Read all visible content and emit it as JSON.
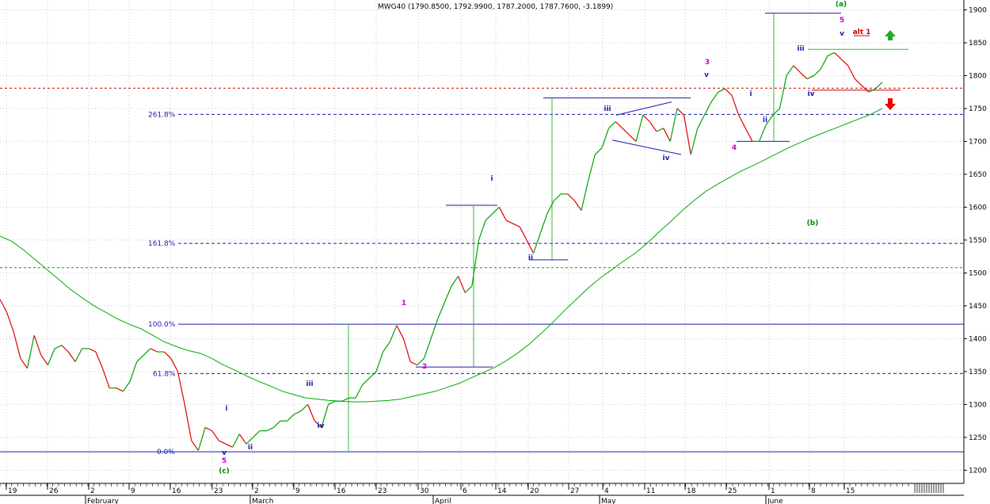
{
  "chart_data": {
    "type": "line",
    "title": "MWG40 (1790.8500, 1792.9900, 1787.2000, 1787.7600, -3.1899)",
    "quote": {
      "open": 1790.85,
      "high": 1792.99,
      "low": 1787.2,
      "close": 1787.76,
      "change": -3.1899
    },
    "ylim": [
      1180,
      1915
    ],
    "y_ticks": [
      1200,
      1250,
      1300,
      1350,
      1400,
      1450,
      1500,
      1550,
      1600,
      1650,
      1700,
      1750,
      1800,
      1850,
      1900
    ],
    "grid": true,
    "x_ticks": [
      "19",
      "26",
      "2",
      "9",
      "16",
      "23",
      "2",
      "9",
      "16",
      "23",
      "30",
      "6",
      "14",
      "20",
      "27",
      "4",
      "11",
      "18",
      "25",
      "1",
      "8",
      "15"
    ],
    "month_labels": [
      "February",
      "March",
      "April",
      "May",
      "June"
    ],
    "series": [
      {
        "color": "#00a000",
        "down_color": "#e00000",
        "values": [
          1460,
          1440,
          1410,
          1370,
          1355,
          1405,
          1375,
          1360,
          1385,
          1390,
          1380,
          1365,
          1385,
          1385,
          1380,
          1355,
          1325,
          1325,
          1320,
          1335,
          1365,
          1375,
          1385,
          1380,
          1380,
          1370,
          1350,
          1300,
          1245,
          1230,
          1265,
          1260,
          1245,
          1240,
          1235,
          1255,
          1240,
          1250,
          1260,
          1260,
          1265,
          1275,
          1275,
          1285,
          1290,
          1300,
          1275,
          1265,
          1300,
          1305,
          1305,
          1310,
          1310,
          1330,
          1340,
          1350,
          1380,
          1395,
          1420,
          1400,
          1365,
          1360,
          1370,
          1400,
          1430,
          1455,
          1480,
          1495,
          1470,
          1480,
          1550,
          1580,
          1590,
          1600,
          1580,
          1575,
          1570,
          1550,
          1530,
          1560,
          1590,
          1610,
          1620,
          1620,
          1610,
          1595,
          1640,
          1680,
          1690,
          1720,
          1730,
          1720,
          1710,
          1700,
          1740,
          1730,
          1715,
          1720,
          1700,
          1750,
          1740,
          1680,
          1720,
          1740,
          1760,
          1775,
          1780,
          1770,
          1740,
          1720,
          1700,
          1700,
          1725,
          1740,
          1750,
          1800,
          1815,
          1805,
          1795,
          1800,
          1810,
          1830,
          1835,
          1825,
          1815,
          1795,
          1785,
          1775,
          1780,
          1790
        ]
      },
      {
        "color": "#00aa00",
        "values": [
          1556,
          1548,
          1535,
          1520,
          1505,
          1490,
          1475,
          1462,
          1450,
          1440,
          1430,
          1422,
          1415,
          1405,
          1395,
          1388,
          1382,
          1378,
          1370,
          1360,
          1352,
          1343,
          1335,
          1328,
          1320,
          1315,
          1310,
          1308,
          1306,
          1305,
          1304,
          1304,
          1305,
          1306,
          1308,
          1312,
          1316,
          1320,
          1326,
          1332,
          1340,
          1348,
          1356,
          1366,
          1378,
          1392,
          1408,
          1425,
          1443,
          1460,
          1477,
          1492,
          1505,
          1518,
          1530,
          1545,
          1562,
          1578,
          1595,
          1610,
          1624,
          1635,
          1645,
          1655,
          1663,
          1672,
          1681,
          1690,
          1698,
          1706,
          1713,
          1720,
          1727,
          1734,
          1741,
          1750
        ]
      }
    ],
    "fib_levels": [
      {
        "label": "261.8%",
        "value": 1741,
        "color": "#1a1aaa"
      },
      {
        "label": "161.8%",
        "value": 1545,
        "color": "#1a1aaa"
      },
      {
        "label": "100.0%",
        "value": 1422,
        "color": "#1a1aaa"
      },
      {
        "label": "61.8%",
        "value": 1347,
        "color": "#1a1aaa"
      },
      {
        "label": "0.0%",
        "value": 1228,
        "color": "#1a1aaa"
      }
    ],
    "ref_lines": [
      {
        "value": 1781,
        "color": "#cc0000"
      },
      {
        "value": 1508,
        "color": "#00a000"
      }
    ],
    "wave_labels": [
      {
        "text": "i",
        "color": "#1a1aaa"
      },
      {
        "text": "v",
        "color": "#1a1aaa"
      },
      {
        "text": "5",
        "color": "#cc00cc"
      },
      {
        "text": "(c)",
        "color": "#008800"
      },
      {
        "text": "ii",
        "color": "#1a1aaa"
      },
      {
        "text": "iii",
        "color": "#1a1aaa"
      },
      {
        "text": "iv",
        "color": "#1a1aaa"
      },
      {
        "text": "1",
        "color": "#cc00cc"
      },
      {
        "text": "2",
        "color": "#cc00cc"
      },
      {
        "text": "i",
        "color": "#1a1aaa"
      },
      {
        "text": "ii",
        "color": "#1a1aaa"
      },
      {
        "text": "iii",
        "color": "#1a1aaa"
      },
      {
        "text": "iv",
        "color": "#1a1aaa"
      },
      {
        "text": "3",
        "color": "#cc00cc"
      },
      {
        "text": "v",
        "color": "#1a1aaa"
      },
      {
        "text": "4",
        "color": "#cc00cc"
      },
      {
        "text": "i",
        "color": "#1a1aaa"
      },
      {
        "text": "ii",
        "color": "#1a1aaa"
      },
      {
        "text": "iii",
        "color": "#1a1aaa"
      },
      {
        "text": "iv",
        "color": "#1a1aaa"
      },
      {
        "text": "(a)",
        "color": "#008800"
      },
      {
        "text": "5",
        "color": "#cc00cc"
      },
      {
        "text": "v",
        "color": "#1a1aaa"
      },
      {
        "text": "(b)",
        "color": "#008800"
      },
      {
        "text": "alt 1",
        "color": "#cc0000"
      }
    ],
    "arrows": [
      {
        "direction": "up",
        "color": "#22aa22"
      },
      {
        "direction": "down",
        "color": "#ee0000"
      }
    ]
  }
}
